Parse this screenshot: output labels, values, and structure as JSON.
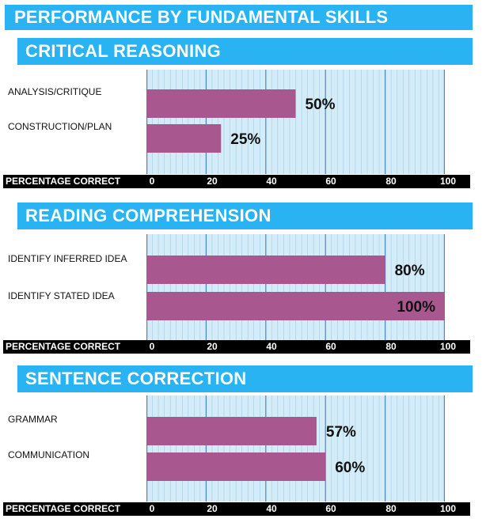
{
  "main_title": "PERFORMANCE BY FUNDAMENTAL SKILLS",
  "axis_title": "PERCENTAGE CORRECT",
  "colors": {
    "header": "#29b3f2",
    "bar": "#a8588f",
    "plot_bg": "#d4ecf7",
    "grid_major": "#4a86c8",
    "grid_minor": "#9fcbe6",
    "axis_bar": "#000000"
  },
  "chart_data": [
    {
      "type": "bar",
      "title": "CRITICAL REASONING",
      "xlabel": "PERCENTAGE CORRECT",
      "xlim": [
        0,
        100
      ],
      "ticks": [
        "0",
        "20",
        "40",
        "60",
        "80",
        "100"
      ],
      "grid": true,
      "categories": [
        "ANALYSIS/CRITIQUE",
        "CONSTRUCTION/PLAN"
      ],
      "values": [
        50,
        25
      ],
      "data_labels": [
        "50%",
        "25%"
      ]
    },
    {
      "type": "bar",
      "title": "READING COMPREHENSION",
      "xlabel": "PERCENTAGE CORRECT",
      "xlim": [
        0,
        100
      ],
      "ticks": [
        "0",
        "20",
        "40",
        "60",
        "80",
        "100"
      ],
      "grid": true,
      "categories": [
        "IDENTIFY INFERRED IDEA",
        "IDENTIFY STATED IDEA"
      ],
      "values": [
        80,
        100
      ],
      "data_labels": [
        "80%",
        "100%"
      ]
    },
    {
      "type": "bar",
      "title": "SENTENCE CORRECTION",
      "xlabel": "PERCENTAGE CORRECT",
      "xlim": [
        0,
        100
      ],
      "ticks": [
        "0",
        "20",
        "40",
        "60",
        "80",
        "100"
      ],
      "grid": true,
      "categories": [
        "GRAMMAR",
        "COMMUNICATION"
      ],
      "values": [
        57,
        60
      ],
      "data_labels": [
        "57%",
        "60%"
      ]
    }
  ]
}
